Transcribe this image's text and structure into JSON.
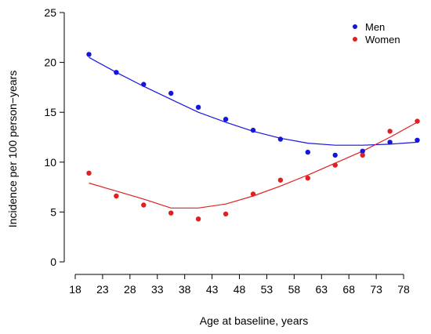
{
  "chart_data": {
    "type": "scatter",
    "title": "",
    "xlabel": "Age at baseline, years",
    "ylabel": "Incidence per 100 person−years",
    "xlim": [
      18,
      81
    ],
    "ylim": [
      0,
      25
    ],
    "x_ticks": [
      "18",
      "23",
      "28",
      "33",
      "38",
      "43",
      "48",
      "53",
      "58",
      "63",
      "68",
      "73",
      "78"
    ],
    "y_ticks": [
      "0",
      "5",
      "10",
      "15",
      "20",
      "25"
    ],
    "grid": false,
    "legend": "top-right",
    "series": [
      {
        "name": "Men",
        "color": "#1515e0",
        "points": [
          [
            20.5,
            20.8
          ],
          [
            25.5,
            19.0
          ],
          [
            30.5,
            17.8
          ],
          [
            35.5,
            16.9
          ],
          [
            40.5,
            15.5
          ],
          [
            45.5,
            14.3
          ],
          [
            50.5,
            13.2
          ],
          [
            55.5,
            12.3
          ],
          [
            60.5,
            11.0
          ],
          [
            65.5,
            10.7
          ],
          [
            70.5,
            11.1
          ],
          [
            75.5,
            12.0
          ],
          [
            80.5,
            12.2
          ]
        ],
        "fit": [
          [
            20.5,
            20.5
          ],
          [
            25.5,
            19.0
          ],
          [
            30.5,
            17.6
          ],
          [
            35.5,
            16.3
          ],
          [
            40.5,
            15.0
          ],
          [
            45.5,
            14.0
          ],
          [
            50.5,
            13.1
          ],
          [
            55.5,
            12.4
          ],
          [
            60.5,
            11.9
          ],
          [
            65.5,
            11.7
          ],
          [
            70.5,
            11.7
          ],
          [
            75.5,
            11.8
          ],
          [
            80.5,
            12.0
          ]
        ]
      },
      {
        "name": "Women",
        "color": "#e02020",
        "points": [
          [
            20.5,
            8.9
          ],
          [
            25.5,
            6.6
          ],
          [
            30.5,
            5.7
          ],
          [
            35.5,
            4.9
          ],
          [
            40.5,
            4.3
          ],
          [
            45.5,
            4.8
          ],
          [
            50.5,
            6.8
          ],
          [
            55.5,
            8.2
          ],
          [
            60.5,
            8.4
          ],
          [
            65.5,
            9.7
          ],
          [
            70.5,
            10.7
          ],
          [
            75.5,
            13.1
          ],
          [
            80.5,
            14.1
          ]
        ],
        "fit": [
          [
            20.5,
            7.9
          ],
          [
            25.5,
            7.1
          ],
          [
            30.5,
            6.3
          ],
          [
            35.5,
            5.4
          ],
          [
            40.5,
            5.4
          ],
          [
            45.5,
            5.8
          ],
          [
            50.5,
            6.6
          ],
          [
            55.5,
            7.6
          ],
          [
            60.5,
            8.7
          ],
          [
            65.5,
            9.9
          ],
          [
            70.5,
            11.1
          ],
          [
            75.5,
            12.5
          ],
          [
            80.5,
            14.0
          ]
        ]
      }
    ]
  }
}
